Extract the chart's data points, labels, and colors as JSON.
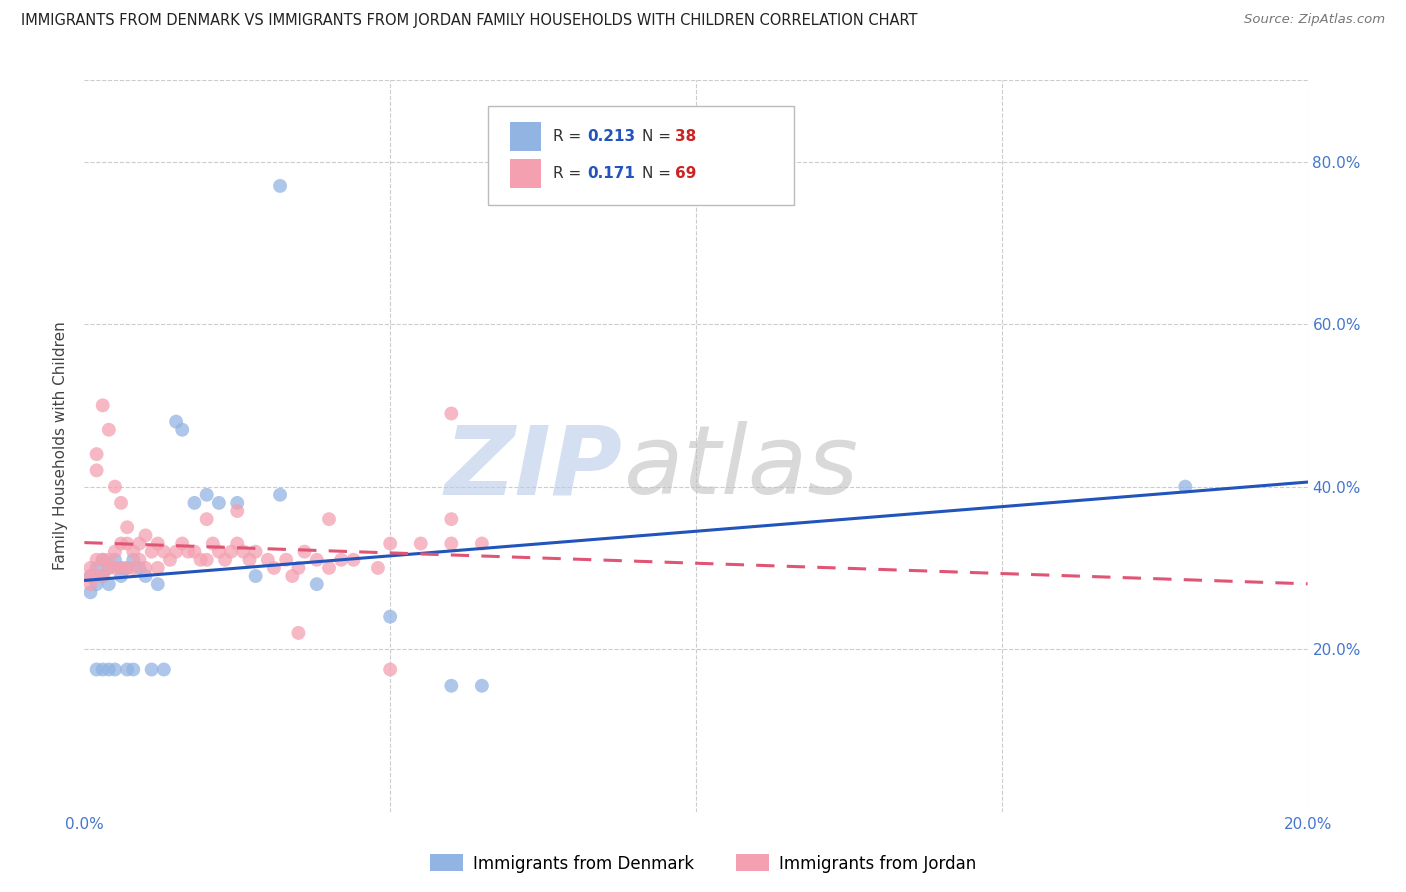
{
  "title": "IMMIGRANTS FROM DENMARK VS IMMIGRANTS FROM JORDAN FAMILY HOUSEHOLDS WITH CHILDREN CORRELATION CHART",
  "source": "Source: ZipAtlas.com",
  "ylabel": "Family Households with Children",
  "xlim": [
    0.0,
    0.2
  ],
  "ylim": [
    0.0,
    0.9
  ],
  "legend_r1": "R = 0.213",
  "legend_n1": "N = 38",
  "legend_r2": "R = 0.171",
  "legend_n2": "N = 69",
  "denmark_color": "#92b4e3",
  "jordan_color": "#f4a0b0",
  "denmark_line_color": "#2255bb",
  "jordan_line_color": "#e05575",
  "denmark_x": [
    0.001,
    0.001,
    0.002,
    0.002,
    0.002,
    0.003,
    0.003,
    0.003,
    0.004,
    0.004,
    0.004,
    0.005,
    0.005,
    0.006,
    0.006,
    0.007,
    0.007,
    0.008,
    0.008,
    0.009,
    0.01,
    0.011,
    0.012,
    0.013,
    0.015,
    0.016,
    0.018,
    0.02,
    0.022,
    0.025,
    0.028,
    0.032,
    0.038,
    0.05,
    0.06,
    0.065,
    0.18,
    0.032
  ],
  "denmark_y": [
    0.29,
    0.27,
    0.3,
    0.28,
    0.175,
    0.31,
    0.29,
    0.175,
    0.3,
    0.175,
    0.28,
    0.31,
    0.175,
    0.3,
    0.29,
    0.175,
    0.3,
    0.31,
    0.175,
    0.3,
    0.29,
    0.175,
    0.28,
    0.175,
    0.48,
    0.47,
    0.38,
    0.39,
    0.38,
    0.38,
    0.29,
    0.39,
    0.28,
    0.24,
    0.155,
    0.155,
    0.4,
    0.77
  ],
  "jordan_x": [
    0.001,
    0.001,
    0.001,
    0.002,
    0.002,
    0.002,
    0.002,
    0.003,
    0.003,
    0.003,
    0.004,
    0.004,
    0.004,
    0.005,
    0.005,
    0.005,
    0.006,
    0.006,
    0.006,
    0.007,
    0.007,
    0.007,
    0.008,
    0.008,
    0.009,
    0.009,
    0.01,
    0.01,
    0.011,
    0.012,
    0.012,
    0.013,
    0.014,
    0.015,
    0.016,
    0.017,
    0.018,
    0.019,
    0.02,
    0.021,
    0.022,
    0.023,
    0.024,
    0.025,
    0.026,
    0.027,
    0.028,
    0.03,
    0.031,
    0.033,
    0.034,
    0.035,
    0.036,
    0.038,
    0.04,
    0.042,
    0.044,
    0.048,
    0.05,
    0.055,
    0.06,
    0.065,
    0.035,
    0.05,
    0.06,
    0.02,
    0.025,
    0.04,
    0.06
  ],
  "jordan_y": [
    0.3,
    0.29,
    0.28,
    0.44,
    0.42,
    0.31,
    0.29,
    0.5,
    0.31,
    0.29,
    0.47,
    0.31,
    0.3,
    0.4,
    0.32,
    0.3,
    0.38,
    0.33,
    0.3,
    0.35,
    0.33,
    0.3,
    0.32,
    0.3,
    0.33,
    0.31,
    0.34,
    0.3,
    0.32,
    0.33,
    0.3,
    0.32,
    0.31,
    0.32,
    0.33,
    0.32,
    0.32,
    0.31,
    0.31,
    0.33,
    0.32,
    0.31,
    0.32,
    0.33,
    0.32,
    0.31,
    0.32,
    0.31,
    0.3,
    0.31,
    0.29,
    0.3,
    0.32,
    0.31,
    0.3,
    0.31,
    0.31,
    0.3,
    0.33,
    0.33,
    0.33,
    0.33,
    0.22,
    0.175,
    0.36,
    0.36,
    0.37,
    0.36,
    0.49
  ]
}
